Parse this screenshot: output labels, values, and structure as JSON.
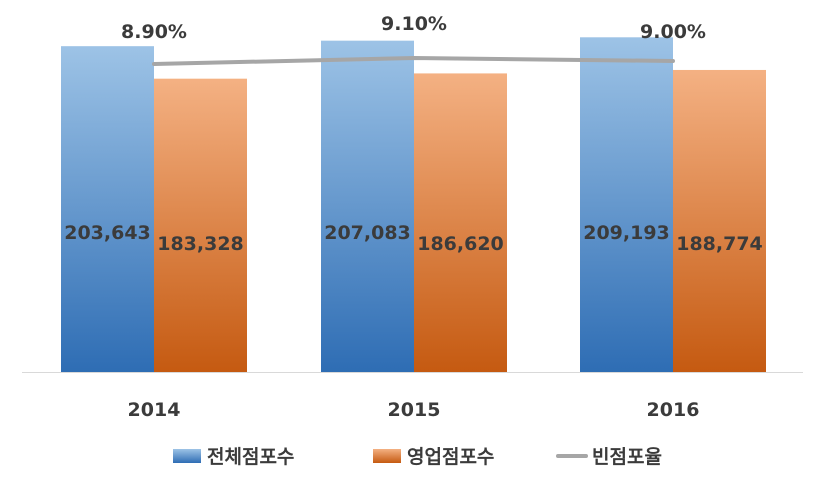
{
  "chart_data": {
    "type": "bar",
    "categories": [
      "2014",
      "2015",
      "2016"
    ],
    "series": [
      {
        "name": "전체점포수",
        "values": [
          203643,
          207083,
          209193
        ],
        "labels": [
          "203,643",
          "207,083",
          "209,193"
        ]
      },
      {
        "name": "영업점포수",
        "values": [
          183328,
          186620,
          188774
        ],
        "labels": [
          "183,328",
          "186,620",
          "188,774"
        ]
      }
    ],
    "line_series": {
      "name": "빈점포율",
      "values": [
        8.9,
        9.1,
        9.0
      ],
      "labels": [
        "8.90%",
        "9.10%",
        "9.00%"
      ]
    },
    "ylim": [
      0,
      220000
    ],
    "grid": false,
    "legend": "bottom",
    "colors": {
      "total_top": "#9DC3E6",
      "total_bottom": "#2E6DB4",
      "open_top": "#F4B183",
      "open_bottom": "#C55A11",
      "line": "#A6A6A6",
      "axis": "#D9D9D9"
    }
  }
}
